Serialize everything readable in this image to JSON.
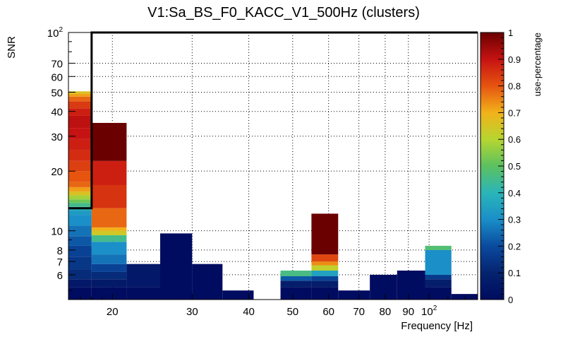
{
  "chart_data": {
    "type": "heatmap",
    "title": "V1:Sa_BS_F0_KACC_V1_500Hz (clusters)",
    "xlabel": "Frequency [Hz]",
    "ylabel": "SNR",
    "zlabel": "use-percentage",
    "x_scale": "log",
    "y_scale": "log",
    "xlim": [
      16,
      128
    ],
    "ylim": [
      4.5,
      100
    ],
    "zlim": [
      0,
      1
    ],
    "x_ticks": [
      {
        "value": 20,
        "label": "20"
      },
      {
        "value": 30,
        "label": "30"
      },
      {
        "value": 40,
        "label": "40"
      },
      {
        "value": 50,
        "label": "50"
      },
      {
        "value": 60,
        "label": "60"
      },
      {
        "value": 70,
        "label": "70"
      },
      {
        "value": 80,
        "label": "80"
      },
      {
        "value": 90,
        "label": "90"
      },
      {
        "value": 100,
        "label": "10^2"
      }
    ],
    "y_ticks": [
      {
        "value": 6,
        "label": "6"
      },
      {
        "value": 7,
        "label": "7"
      },
      {
        "value": 8,
        "label": "8"
      },
      {
        "value": 10,
        "label": "10"
      },
      {
        "value": 20,
        "label": "20"
      },
      {
        "value": 30,
        "label": "30"
      },
      {
        "value": 40,
        "label": "40"
      },
      {
        "value": 50,
        "label": "50"
      },
      {
        "value": 60,
        "label": "60"
      },
      {
        "value": 70,
        "label": "70"
      },
      {
        "value": 100,
        "label": "10^2"
      }
    ],
    "z_ticks": [
      {
        "value": 0,
        "label": "0"
      },
      {
        "value": 0.1,
        "label": "0.1"
      },
      {
        "value": 0.2,
        "label": "0.2"
      },
      {
        "value": 0.3,
        "label": "0.3"
      },
      {
        "value": 0.4,
        "label": "0.4"
      },
      {
        "value": 0.5,
        "label": "0.5"
      },
      {
        "value": 0.6,
        "label": "0.6"
      },
      {
        "value": 0.7,
        "label": "0.7"
      },
      {
        "value": 0.8,
        "label": "0.8"
      },
      {
        "value": 0.9,
        "label": "0.9"
      },
      {
        "value": 1,
        "label": "1"
      }
    ],
    "columns": [
      {
        "f_low": 16,
        "f_high": 18,
        "segments": [
          {
            "y_top": 5.2,
            "z": 0.0
          },
          {
            "y_top": 5.7,
            "z": 0.05
          },
          {
            "y_top": 6.4,
            "z": 0.12
          },
          {
            "y_top": 7.4,
            "z": 0.15
          },
          {
            "y_top": 8.4,
            "z": 0.18
          },
          {
            "y_top": 9.4,
            "z": 0.22
          },
          {
            "y_top": 10.6,
            "z": 0.26
          },
          {
            "y_top": 12.0,
            "z": 0.3
          },
          {
            "y_top": 12.6,
            "z": 0.33
          },
          {
            "y_top": 13.2,
            "z": 0.38
          },
          {
            "y_top": 13.8,
            "z": 0.45
          },
          {
            "y_top": 14.4,
            "z": 0.52
          },
          {
            "y_top": 15.1,
            "z": 0.58
          },
          {
            "y_top": 15.8,
            "z": 0.66
          },
          {
            "y_top": 16.6,
            "z": 0.72
          },
          {
            "y_top": 17.6,
            "z": 0.78
          },
          {
            "y_top": 20.0,
            "z": 0.8
          },
          {
            "y_top": 22.5,
            "z": 0.83
          },
          {
            "y_top": 25.5,
            "z": 0.86
          },
          {
            "y_top": 29.0,
            "z": 0.88
          },
          {
            "y_top": 33.0,
            "z": 0.9
          },
          {
            "y_top": 38.0,
            "z": 0.91
          },
          {
            "y_top": 41.5,
            "z": 0.88
          },
          {
            "y_top": 45.0,
            "z": 0.84
          },
          {
            "y_top": 47.5,
            "z": 0.78
          },
          {
            "y_top": 49.0,
            "z": 0.72
          },
          {
            "y_top": 50.5,
            "z": 0.66
          }
        ]
      },
      {
        "f_low": 18,
        "f_high": 21.5,
        "segments": [
          {
            "y_top": 5.2,
            "z": 0.0
          },
          {
            "y_top": 5.7,
            "z": 0.06
          },
          {
            "y_top": 6.2,
            "z": 0.12
          },
          {
            "y_top": 6.8,
            "z": 0.18
          },
          {
            "y_top": 7.6,
            "z": 0.26
          },
          {
            "y_top": 8.8,
            "z": 0.3
          },
          {
            "y_top": 9.5,
            "z": 0.45
          },
          {
            "y_top": 10.0,
            "z": 0.64
          },
          {
            "y_top": 10.4,
            "z": 0.7
          },
          {
            "y_top": 13.0,
            "z": 0.78
          },
          {
            "y_top": 17.0,
            "z": 0.85
          },
          {
            "y_top": 22.5,
            "z": 0.88
          },
          {
            "y_top": 35.0,
            "z": 1.0
          }
        ]
      },
      {
        "f_low": 21.5,
        "f_high": 25.5,
        "segments": [
          {
            "y_top": 5.2,
            "z": 0.0
          },
          {
            "y_top": 6.8,
            "z": 0.05
          }
        ]
      },
      {
        "f_low": 25.5,
        "f_high": 30.0,
        "segments": [
          {
            "y_top": 9.7,
            "z": 0.0
          }
        ]
      },
      {
        "f_low": 30.0,
        "f_high": 35.0,
        "segments": [
          {
            "y_top": 6.8,
            "z": 0.0
          }
        ]
      },
      {
        "f_low": 35.0,
        "f_high": 41.0,
        "segments": [
          {
            "y_top": 5.0,
            "z": 0.0
          }
        ]
      },
      {
        "f_low": 41.0,
        "f_high": 47.0,
        "segments": []
      },
      {
        "f_low": 47.0,
        "f_high": 55.0,
        "segments": [
          {
            "y_top": 5.2,
            "z": 0.0
          },
          {
            "y_top": 5.6,
            "z": 0.08
          },
          {
            "y_top": 5.9,
            "z": 0.22
          },
          {
            "y_top": 6.3,
            "z": 0.46
          }
        ]
      },
      {
        "f_low": 55.0,
        "f_high": 63.0,
        "segments": [
          {
            "y_top": 5.2,
            "z": 0.0
          },
          {
            "y_top": 5.6,
            "z": 0.08
          },
          {
            "y_top": 5.9,
            "z": 0.18
          },
          {
            "y_top": 6.3,
            "z": 0.35
          },
          {
            "y_top": 6.7,
            "z": 0.62
          },
          {
            "y_top": 7.0,
            "z": 0.74
          },
          {
            "y_top": 7.6,
            "z": 0.82
          },
          {
            "y_top": 12.2,
            "z": 1.0
          }
        ]
      },
      {
        "f_low": 63.0,
        "f_high": 74.0,
        "segments": [
          {
            "y_top": 5.0,
            "z": 0.0
          }
        ]
      },
      {
        "f_low": 74.0,
        "f_high": 85.0,
        "segments": [
          {
            "y_top": 6.0,
            "z": 0.0
          }
        ]
      },
      {
        "f_low": 85.0,
        "f_high": 98.0,
        "segments": [
          {
            "y_top": 6.3,
            "z": 0.0
          }
        ]
      },
      {
        "f_low": 98.0,
        "f_high": 112.0,
        "segments": [
          {
            "y_top": 5.2,
            "z": 0.0
          },
          {
            "y_top": 5.7,
            "z": 0.08
          },
          {
            "y_top": 6.0,
            "z": 0.16
          },
          {
            "y_top": 8.0,
            "z": 0.3
          },
          {
            "y_top": 8.4,
            "z": 0.48
          }
        ]
      },
      {
        "f_low": 112.0,
        "f_high": 128.0,
        "segments": [
          {
            "y_top": 4.8,
            "z": 0.0
          }
        ]
      }
    ],
    "outline": [
      [
        16,
        13.0
      ],
      [
        18,
        13.0
      ],
      [
        18,
        100
      ],
      [
        128,
        100
      ]
    ]
  }
}
